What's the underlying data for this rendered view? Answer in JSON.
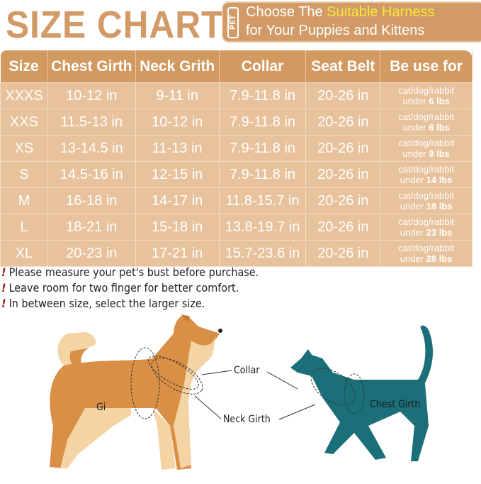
{
  "title": "SIZE CHART",
  "promo": {
    "tag": "PET",
    "line1_pre": "Choose The ",
    "line1_highlight": "Suitable Harness",
    "line2": "for Your Puppies and Kittens"
  },
  "colors": {
    "brand": "#d19a66",
    "highlight": "#f7ea3a",
    "row": "#e7c29c",
    "cat": "#1b6f78",
    "alert": "#a0181c"
  },
  "table": {
    "headers": [
      "Size",
      "Chest Girth",
      "Neck Grith",
      "Collar",
      "Seat Belt",
      "Be use for"
    ],
    "rows": [
      {
        "size": "XXXS",
        "chest": "10-12 in",
        "neck": "9-11 in",
        "collar": "7.9-11.8 in",
        "belt": "20-26 in",
        "use": "cat/dog/rabbit",
        "under": "under",
        "weight": "6 lbs"
      },
      {
        "size": "XXS",
        "chest": "11.5-13 in",
        "neck": "10-12 in",
        "collar": "7.9-11.8 in",
        "belt": "20-26 in",
        "use": "cat/dog/rabbit",
        "under": "under",
        "weight": "6 lbs"
      },
      {
        "size": "XS",
        "chest": "13-14.5 in",
        "neck": "11-13 in",
        "collar": "7.9-11.8 in",
        "belt": "20-26 in",
        "use": "cat/dog/rabbit",
        "under": "under",
        "weight": "9 lbs"
      },
      {
        "size": "S",
        "chest": "14.5-16 in",
        "neck": "12-15 in",
        "collar": "7.9-11.8 in",
        "belt": "20-26 in",
        "use": "cat/dog/rabbit",
        "under": "under",
        "weight": "14 lbs"
      },
      {
        "size": "M",
        "chest": "16-18 in",
        "neck": "14-17 in",
        "collar": "11.8-15.7 in",
        "belt": "20-26 in",
        "use": "cat/dog/rabbit",
        "under": "under",
        "weight": "18 lbs"
      },
      {
        "size": "L",
        "chest": "18-21 in",
        "neck": "15-18 in",
        "collar": "13.8-19.7 in",
        "belt": "20-26 in",
        "use": "cat/dog/rabbit",
        "under": "under",
        "weight": "23 lbs"
      },
      {
        "size": "XL",
        "chest": "20-23 in",
        "neck": "17-21 in",
        "collar": "15.7-23.6 in",
        "belt": "20-26 in",
        "use": "cat/dog/rabbit",
        "under": "under",
        "weight": "28 lbs"
      }
    ]
  },
  "notes": {
    "bullet": "!",
    "items": [
      "Please measure your pet's bust before purchase.",
      "Leave room for two finger for better comfort.",
      "In between size, select the larger size."
    ]
  },
  "illustration": {
    "collar": "Collar",
    "neck_girth": "Neck Girth",
    "chest_girth": "Chest Girth",
    "partial_label": "Gi"
  }
}
